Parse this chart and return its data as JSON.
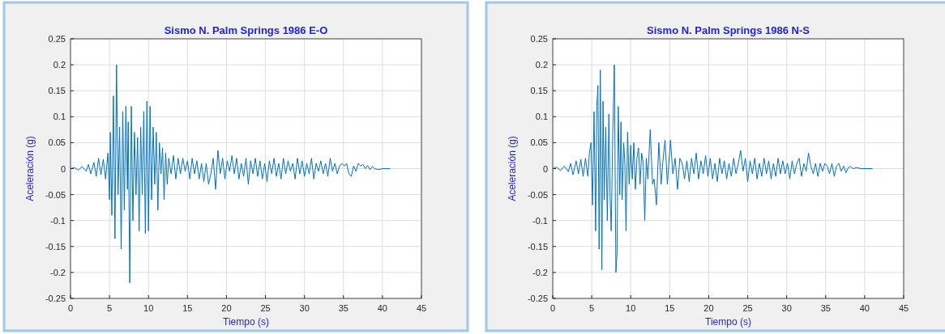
{
  "chart_data": [
    {
      "type": "line",
      "title": "Sismo N. Palm Springs 1986 E-O",
      "xlabel": "Tiempo (s)",
      "ylabel": "Aceleración (g)",
      "xlim": [
        0,
        45
      ],
      "xticks": [
        0,
        5,
        10,
        15,
        20,
        25,
        30,
        35,
        40,
        45
      ],
      "ylim": [
        -0.25,
        0.25
      ],
      "yticks": [
        -0.25,
        -0.2,
        -0.15,
        -0.1,
        -0.05,
        0,
        0.05,
        0.1,
        0.15,
        0.2,
        0.25
      ],
      "grid": true,
      "series": [
        {
          "color": "#0072bd",
          "x": [
            0,
            0.5,
            1,
            1.5,
            2,
            2.3,
            2.6,
            3,
            3.3,
            3.6,
            3.9,
            4.2,
            4.5,
            4.8,
            5,
            5.1,
            5.3,
            5.5,
            5.7,
            5.9,
            6.1,
            6.3,
            6.5,
            6.7,
            6.9,
            7.1,
            7.3,
            7.4,
            7.6,
            7.8,
            8,
            8.2,
            8.4,
            8.6,
            8.8,
            9,
            9.2,
            9.4,
            9.6,
            9.8,
            10,
            10.2,
            10.4,
            10.6,
            10.8,
            11,
            11.2,
            11.4,
            11.6,
            11.8,
            12,
            12.2,
            12.4,
            12.6,
            12.9,
            13.2,
            13.5,
            13.8,
            14.1,
            14.4,
            14.7,
            15,
            15.3,
            15.6,
            15.9,
            16.2,
            16.5,
            16.8,
            17.1,
            17.4,
            17.7,
            18,
            18.3,
            18.6,
            18.9,
            19.2,
            19.5,
            19.8,
            20.1,
            20.4,
            20.7,
            21,
            21.3,
            21.6,
            21.9,
            22.2,
            22.5,
            22.8,
            23.1,
            23.4,
            23.7,
            24,
            24.3,
            24.6,
            24.9,
            25.2,
            25.5,
            25.8,
            26.1,
            26.4,
            26.7,
            27,
            27.3,
            27.6,
            27.9,
            28.2,
            28.5,
            28.8,
            29.1,
            29.4,
            29.7,
            30,
            30.3,
            30.6,
            30.9,
            31.2,
            31.5,
            31.8,
            32.1,
            32.4,
            32.7,
            33,
            33.3,
            33.6,
            33.9,
            34.2,
            34.5,
            34.8,
            35.1,
            35.4,
            35.7,
            36,
            36.3,
            36.6,
            36.9,
            37.2,
            37.5,
            37.8,
            38.1,
            38.4,
            38.7,
            39,
            39.5,
            40,
            41
          ],
          "values": [
            0,
            0.002,
            -0.003,
            0.004,
            -0.005,
            0.008,
            -0.01,
            0.012,
            -0.015,
            0.02,
            -0.012,
            0.018,
            -0.02,
            0.03,
            -0.06,
            0.07,
            -0.09,
            0.14,
            -0.135,
            0.2,
            -0.05,
            0.08,
            -0.155,
            0.11,
            -0.08,
            0.12,
            -0.04,
            0.09,
            -0.22,
            0.12,
            -0.1,
            0.07,
            -0.05,
            0.06,
            -0.12,
            0.08,
            -0.05,
            0.11,
            -0.125,
            0.13,
            -0.12,
            0.12,
            -0.06,
            0.08,
            -0.03,
            0.07,
            -0.08,
            0.05,
            -0.01,
            0.04,
            -0.06,
            0.03,
            -0.03,
            0.02,
            -0.01,
            0.025,
            -0.02,
            0.02,
            -0.01,
            0.02,
            -0.005,
            0.015,
            -0.02,
            0.02,
            -0.01,
            0.015,
            -0.02,
            0.01,
            -0.025,
            0.01,
            -0.03,
            -0.01,
            0.02,
            -0.04,
            0.035,
            -0.01,
            0.02,
            -0.02,
            0.015,
            -0.005,
            0.025,
            -0.01,
            0.02,
            -0.02,
            0.01,
            -0.015,
            0.02,
            -0.03,
            0.015,
            -0.01,
            0.02,
            -0.015,
            0.015,
            -0.02,
            0.01,
            -0.025,
            0.015,
            -0.01,
            0.02,
            -0.015,
            0.01,
            -0.02,
            0.02,
            -0.01,
            0.015,
            -0.005,
            0.01,
            -0.02,
            0.02,
            -0.01,
            0.015,
            -0.015,
            0.01,
            -0.01,
            0.02,
            -0.02,
            0.01,
            -0.005,
            0.015,
            -0.01,
            0.01,
            -0.015,
            0.02,
            -0.005,
            0.01,
            -0.01,
            0.005,
            0.01,
            0.005,
            0.01,
            -0.01,
            -0.015,
            0.005,
            -0.005,
            0.01,
            0.005,
            0.008,
            0,
            0.006,
            -0.002,
            0.004,
            0,
            -0.002,
            0,
            0
          ]
        }
      ]
    },
    {
      "type": "line",
      "title": "Sismo N. Palm Springs 1986 N-S",
      "xlabel": "Tiempo (s)",
      "ylabel": "Aceleración (g)",
      "xlim": [
        0,
        45
      ],
      "xticks": [
        0,
        5,
        10,
        15,
        20,
        25,
        30,
        35,
        40,
        45
      ],
      "ylim": [
        -0.25,
        0.25
      ],
      "yticks": [
        -0.25,
        -0.2,
        -0.15,
        -0.1,
        -0.05,
        0,
        0.05,
        0.1,
        0.15,
        0.2,
        0.25
      ],
      "grid": true,
      "series": [
        {
          "color": "#0072bd",
          "x": [
            0,
            0.5,
            1,
            1.5,
            2,
            2.3,
            2.6,
            3,
            3.3,
            3.6,
            3.9,
            4.2,
            4.5,
            4.7,
            4.9,
            5.1,
            5.3,
            5.5,
            5.65,
            5.8,
            5.95,
            6.1,
            6.3,
            6.45,
            6.6,
            6.8,
            7,
            7.2,
            7.35,
            7.5,
            7.7,
            7.9,
            8.1,
            8.25,
            8.4,
            8.6,
            8.75,
            8.9,
            9.1,
            9.25,
            9.4,
            9.6,
            9.8,
            10,
            10.2,
            10.4,
            10.6,
            10.8,
            11,
            11.2,
            11.4,
            11.6,
            11.8,
            12,
            12.2,
            12.5,
            12.8,
            13,
            13.3,
            13.6,
            13.9,
            14.1,
            14.4,
            14.7,
            15.1,
            15.4,
            15.7,
            16,
            16.3,
            16.6,
            16.9,
            17.2,
            17.5,
            17.8,
            18.1,
            18.4,
            18.7,
            19,
            19.3,
            19.6,
            19.9,
            20.2,
            20.5,
            20.8,
            21.1,
            21.4,
            21.7,
            22,
            22.3,
            22.6,
            22.9,
            23.2,
            23.5,
            23.8,
            24.1,
            24.4,
            24.7,
            25,
            25.3,
            25.6,
            25.9,
            26.2,
            26.5,
            26.8,
            27.1,
            27.4,
            27.7,
            28,
            28.3,
            28.6,
            28.9,
            29.2,
            29.5,
            29.8,
            30.1,
            30.4,
            30.7,
            31,
            31.3,
            31.6,
            31.9,
            32.2,
            32.5,
            32.8,
            33.1,
            33.4,
            33.7,
            34,
            34.3,
            34.6,
            34.9,
            35.2,
            35.5,
            35.8,
            36.1,
            36.4,
            36.7,
            37,
            37.3,
            37.6,
            37.9,
            38.2,
            38.5,
            39,
            39.5,
            40,
            41
          ],
          "values": [
            0,
            0.003,
            -0.004,
            0.005,
            -0.006,
            0.01,
            -0.012,
            0.015,
            -0.01,
            0.018,
            -0.015,
            0.02,
            -0.015,
            0.03,
            0.05,
            -0.07,
            0.11,
            -0.12,
            0.12,
            0.16,
            -0.155,
            0.19,
            -0.195,
            0.13,
            -0.06,
            0.08,
            -0.1,
            0.105,
            -0.05,
            -0.12,
            0.07,
            0.2,
            -0.2,
            -0.16,
            0.12,
            -0.05,
            0.09,
            -0.06,
            0.05,
            0.01,
            -0.12,
            0.07,
            -0.03,
            0.045,
            -0.02,
            0.05,
            -0.04,
            0.02,
            0.04,
            -0.03,
            0.03,
            0.01,
            -0.1,
            0.02,
            -0.02,
            0.075,
            -0.03,
            -0.02,
            -0.07,
            0.05,
            -0.03,
            0.01,
            0.055,
            -0.03,
            0.055,
            -0.01,
            0.02,
            -0.04,
            0.02,
            0.01,
            -0.02,
            0.015,
            -0.025,
            0.02,
            -0.01,
            0.03,
            -0.02,
            0.015,
            -0.01,
            0.025,
            -0.015,
            0.02,
            -0.02,
            0.01,
            -0.025,
            0.02,
            -0.01,
            0.015,
            -0.02,
            0.01,
            -0.015,
            0.02,
            -0.01,
            0.01,
            0.035,
            -0.005,
            0.02,
            -0.025,
            0.015,
            -0.01,
            0.02,
            -0.02,
            0.01,
            -0.015,
            0.02,
            -0.01,
            0.015,
            -0.02,
            0.01,
            -0.015,
            0.02,
            -0.01,
            0.015,
            -0.01,
            0.01,
            -0.02,
            0.015,
            -0.01,
            0.01,
            0.02,
            -0.015,
            0.01,
            -0.005,
            0.03,
            0.005,
            -0.01,
            0.01,
            -0.015,
            0.01,
            -0.005,
            0.01,
            0.005,
            -0.01,
            0.01,
            -0.015,
            0.005,
            0.01,
            -0.005,
            0.005,
            -0.008,
            0.002,
            0.004,
            0,
            0.002,
            0,
            0,
            0
          ]
        }
      ]
    }
  ]
}
